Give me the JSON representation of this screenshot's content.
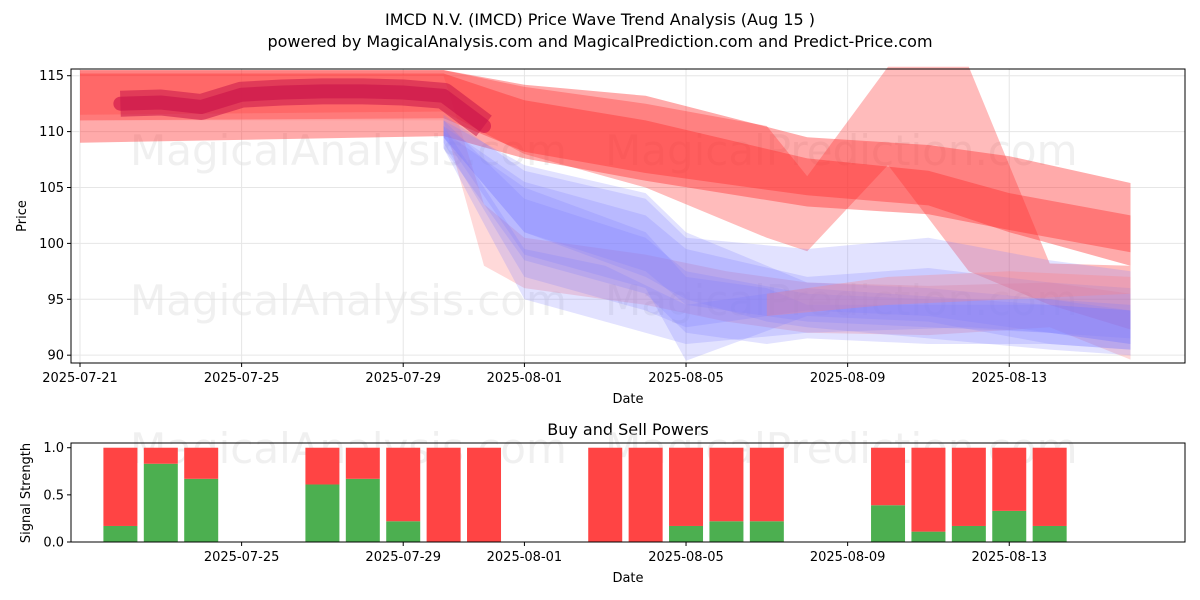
{
  "title": "IMCD N.V. (IMCD) Price Wave Trend Analysis (Aug 15 )",
  "subtitle": "powered by MagicalAnalysis.com and MagicalPrediction.com and Predict-Price.com",
  "watermarks": [
    "MagicalAnalysis.com",
    "MagicalPrediction.com"
  ],
  "colors": {
    "sell": "#ff4444",
    "buy": "#4caf50",
    "forecast_red": "#ff2a2a",
    "forecast_blue": "#7a7aff",
    "history": "#d61f4f"
  },
  "chart_data": [
    {
      "type": "area",
      "title": "",
      "xlabel": "Date",
      "ylabel": "Price",
      "xlim": [
        "2025-07-21",
        "2025-08-17"
      ],
      "ylim": [
        89.3,
        115.6
      ],
      "x_ticks": [
        "2025-07-21",
        "2025-07-25",
        "2025-07-29",
        "2025-08-01",
        "2025-08-05",
        "2025-08-09",
        "2025-08-13"
      ],
      "y_ticks": [
        90,
        95,
        100,
        105,
        110,
        115
      ],
      "grid": true,
      "history": {
        "name": "",
        "x": [
          "2025-07-22",
          "2025-07-23",
          "2025-07-24",
          "2025-07-25",
          "2025-07-26",
          "2025-07-27",
          "2025-07-28",
          "2025-07-29",
          "2025-07-30",
          "2025-07-31"
        ],
        "y": [
          112.5,
          112.6,
          112.2,
          113.3,
          113.5,
          113.6,
          113.6,
          113.5,
          113.2,
          110.5
        ]
      },
      "bands": [
        {
          "color": "red",
          "opacity": 0.4,
          "x": [
            "2025-07-21",
            "2025-07-30",
            "2025-08-01",
            "2025-08-04",
            "2025-08-08",
            "2025-08-11",
            "2025-08-13",
            "2025-08-16"
          ],
          "upper": [
            115.5,
            115.5,
            114.2,
            113.2,
            109.5,
            108.8,
            107.8,
            105.4
          ],
          "lower": [
            109.0,
            109.6,
            107.6,
            105.6,
            103.3,
            102.6,
            101.2,
            99.2
          ]
        },
        {
          "color": "red",
          "opacity": 0.4,
          "x": [
            "2025-07-21",
            "2025-07-30",
            "2025-08-01",
            "2025-08-04",
            "2025-08-08",
            "2025-08-11",
            "2025-08-13",
            "2025-08-16"
          ],
          "upper": [
            115.2,
            115.2,
            112.8,
            111.0,
            107.6,
            106.5,
            104.5,
            102.5
          ],
          "lower": [
            111.0,
            111.2,
            108.2,
            106.3,
            104.3,
            103.4,
            101.0,
            98.0
          ]
        },
        {
          "color": "red",
          "opacity": 0.32,
          "x": [
            "2025-07-21",
            "2025-07-30",
            "2025-08-01",
            "2025-08-04",
            "2025-08-07",
            "2025-08-08",
            "2025-08-10",
            "2025-08-12",
            "2025-08-14",
            "2025-08-16"
          ],
          "upper": [
            115.5,
            115.5,
            114.0,
            112.5,
            110.5,
            106.0,
            115.8,
            115.8,
            98.2,
            98.0
          ],
          "lower": [
            111.5,
            111.8,
            108.0,
            105.0,
            100.5,
            99.3,
            107.0,
            97.5,
            94.5,
            92.3
          ]
        },
        {
          "color": "pink",
          "opacity": 0.3,
          "x": [
            "2025-07-21",
            "2025-07-30",
            "2025-07-31",
            "2025-08-01",
            "2025-08-04",
            "2025-08-06",
            "2025-08-08",
            "2025-08-11",
            "2025-08-14",
            "2025-08-16"
          ],
          "upper": [
            115.0,
            115.0,
            103.5,
            100.5,
            99.0,
            97.5,
            96.5,
            96.2,
            96.5,
            95.5
          ],
          "lower": [
            111.0,
            111.0,
            98.0,
            96.0,
            94.5,
            93.0,
            92.0,
            91.8,
            92.5,
            89.6
          ]
        },
        {
          "color": "blue",
          "opacity": 0.22,
          "x": [
            "2025-07-30",
            "2025-08-01",
            "2025-08-04",
            "2025-08-05",
            "2025-08-08",
            "2025-08-11",
            "2025-08-14",
            "2025-08-16"
          ],
          "upper": [
            111.5,
            106.5,
            104.0,
            100.5,
            99.5,
            100.5,
            98.5,
            97.5
          ],
          "lower": [
            109.5,
            99.0,
            96.0,
            89.5,
            93.5,
            93.0,
            91.0,
            90.5
          ]
        },
        {
          "color": "blue",
          "opacity": 0.22,
          "x": [
            "2025-07-30",
            "2025-08-01",
            "2025-08-04",
            "2025-08-05",
            "2025-08-08",
            "2025-08-11",
            "2025-08-14",
            "2025-08-16"
          ],
          "upper": [
            110.5,
            105.5,
            102.5,
            99.5,
            97.0,
            97.8,
            96.5,
            96.0
          ],
          "lower": [
            109.0,
            97.0,
            94.0,
            92.5,
            94.0,
            93.5,
            92.0,
            91.0
          ]
        },
        {
          "color": "blue",
          "opacity": 0.22,
          "x": [
            "2025-07-30",
            "2025-08-01",
            "2025-08-04",
            "2025-08-05",
            "2025-08-08",
            "2025-08-11",
            "2025-08-14",
            "2025-08-16"
          ],
          "upper": [
            111.0,
            104.0,
            100.5,
            97.5,
            95.5,
            95.0,
            95.0,
            94.5
          ],
          "lower": [
            109.5,
            101.0,
            97.5,
            94.5,
            93.0,
            92.5,
            92.0,
            91.0
          ]
        },
        {
          "color": "blue",
          "opacity": 0.22,
          "x": [
            "2025-07-30",
            "2025-08-01",
            "2025-08-04",
            "2025-08-05",
            "2025-08-07",
            "2025-08-08",
            "2025-08-11",
            "2025-08-14",
            "2025-08-16"
          ],
          "upper": [
            111.0,
            107.0,
            104.5,
            101.0,
            98.0,
            96.5,
            96.0,
            95.0,
            94.0
          ],
          "lower": [
            109.5,
            101.0,
            97.0,
            95.0,
            93.0,
            92.5,
            91.5,
            90.5,
            90.0
          ]
        },
        {
          "color": "blue",
          "opacity": 0.22,
          "x": [
            "2025-07-30",
            "2025-08-01",
            "2025-08-03",
            "2025-08-05",
            "2025-08-08",
            "2025-08-12",
            "2025-08-16"
          ],
          "upper": [
            110.5,
            99.5,
            98.0,
            94.5,
            96.0,
            95.0,
            94.0
          ],
          "lower": [
            108.5,
            95.0,
            93.0,
            91.0,
            92.0,
            92.5,
            91.5
          ]
        },
        {
          "color": "blue",
          "opacity": 0.22,
          "x": [
            "2025-07-30",
            "2025-08-01",
            "2025-08-04",
            "2025-08-05",
            "2025-08-07",
            "2025-08-08",
            "2025-08-11",
            "2025-08-14",
            "2025-08-16"
          ],
          "upper": [
            110.0,
            105.0,
            101.0,
            97.0,
            96.0,
            94.5,
            94.5,
            94.5,
            94.0
          ],
          "lower": [
            108.5,
            98.5,
            95.5,
            92.0,
            91.0,
            91.5,
            91.0,
            91.0,
            90.5
          ]
        },
        {
          "color": "pink",
          "opacity": 0.3,
          "x": [
            "2025-08-07",
            "2025-08-10",
            "2025-08-13",
            "2025-08-16"
          ],
          "upper": [
            95.5,
            97.0,
            97.5,
            97.0
          ],
          "lower": [
            93.5,
            94.5,
            95.0,
            95.5
          ]
        }
      ]
    },
    {
      "type": "bar",
      "title": "Buy and Sell Powers",
      "xlabel": "Date",
      "ylabel": "Signal Strength",
      "ylim": [
        0,
        1.05
      ],
      "x_ticks": [
        "2025-07-25",
        "2025-07-29",
        "2025-08-01",
        "2025-08-05",
        "2025-08-09",
        "2025-08-13"
      ],
      "y_ticks": [
        "0.0",
        "0.5",
        "1.0"
      ],
      "dates": [
        "2025-07-22",
        "2025-07-23",
        "2025-07-24",
        "2025-07-27",
        "2025-07-28",
        "2025-07-29",
        "2025-07-30",
        "2025-07-31",
        "2025-08-03",
        "2025-08-04",
        "2025-08-05",
        "2025-08-06",
        "2025-08-07",
        "2025-08-10",
        "2025-08-11",
        "2025-08-12",
        "2025-08-13",
        "2025-08-14"
      ],
      "series": [
        {
          "name": "Buy",
          "values": [
            0.17,
            0.83,
            0.67,
            0.61,
            0.67,
            0.22,
            0,
            0,
            0,
            0,
            0.17,
            0.22,
            0.22,
            0.39,
            0.11,
            0.17,
            0.33,
            0.17
          ]
        },
        {
          "name": "Sell",
          "values": [
            0.83,
            0.17,
            0.33,
            0.39,
            0.33,
            0.78,
            1,
            1,
            1,
            1,
            0.83,
            0.78,
            0.78,
            0.61,
            0.89,
            0.83,
            0.67,
            0.83
          ]
        }
      ]
    }
  ]
}
